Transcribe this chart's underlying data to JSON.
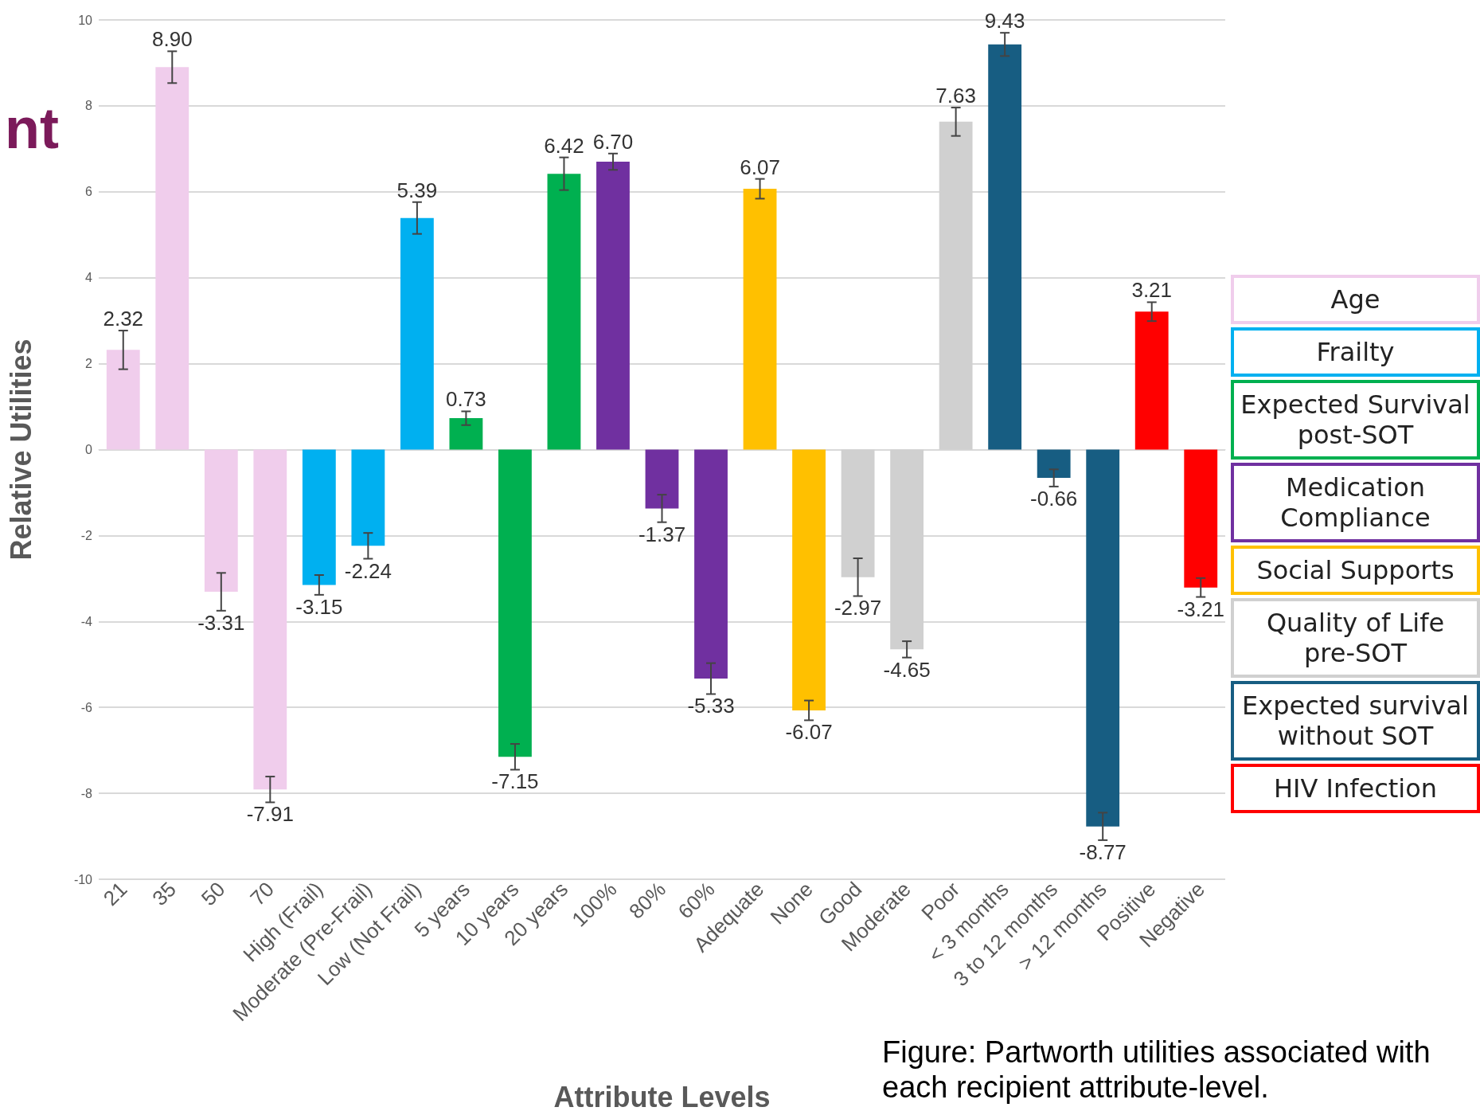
{
  "chart_data": {
    "type": "bar",
    "xlabel": "Attribute Levels",
    "ylabel": "Relative Utilities",
    "categories": [
      "21",
      "35",
      "50",
      "70",
      "High (Frail)",
      "Moderate (Pre-Frail)",
      "Low (Not Frail)",
      "5 years",
      "10 years",
      "20 years",
      "100%",
      "80%",
      "60%",
      "Adequate",
      "None",
      "Good",
      "Moderate",
      "Poor",
      "< 3 months",
      "3 to 12 months",
      "> 12 months",
      "Positive",
      "Negative"
    ],
    "series": [
      {
        "name": "Age",
        "color": "#f0cdec",
        "values": [
          2.32,
          8.9,
          -3.31,
          -7.91,
          null,
          null,
          null,
          null,
          null,
          null,
          null,
          null,
          null,
          null,
          null,
          null,
          null,
          null,
          null,
          null,
          null,
          null,
          null
        ],
        "errors": [
          0.45,
          0.37,
          0.44,
          0.3,
          null,
          null,
          null,
          null,
          null,
          null,
          null,
          null,
          null,
          null,
          null,
          null,
          null,
          null,
          null,
          null,
          null,
          null,
          null
        ],
        "value_labels": [
          "2.32",
          "8.90",
          "-3.31",
          "-7.91",
          null,
          null,
          null,
          null,
          null,
          null,
          null,
          null,
          null,
          null,
          null,
          null,
          null,
          null,
          null,
          null,
          null,
          null,
          null
        ]
      },
      {
        "name": "Frailty",
        "color": "#00b0f0",
        "values": [
          null,
          null,
          null,
          null,
          -3.15,
          -2.24,
          5.39,
          null,
          null,
          null,
          null,
          null,
          null,
          null,
          null,
          null,
          null,
          null,
          null,
          null,
          null,
          null,
          null
        ],
        "errors": [
          null,
          null,
          null,
          null,
          0.23,
          0.3,
          0.37,
          null,
          null,
          null,
          null,
          null,
          null,
          null,
          null,
          null,
          null,
          null,
          null,
          null,
          null,
          null,
          null
        ],
        "value_labels": [
          null,
          null,
          null,
          null,
          "-3.15",
          "-2.24",
          "5.39",
          null,
          null,
          null,
          null,
          null,
          null,
          null,
          null,
          null,
          null,
          null,
          null,
          null,
          null,
          null,
          null
        ]
      },
      {
        "name": "Expected Survival post-SOT",
        "color": "#00b050",
        "values": [
          null,
          null,
          null,
          null,
          null,
          null,
          null,
          0.73,
          -7.15,
          6.42,
          null,
          null,
          null,
          null,
          null,
          null,
          null,
          null,
          null,
          null,
          null,
          null,
          null
        ],
        "errors": [
          null,
          null,
          null,
          null,
          null,
          null,
          null,
          0.16,
          0.3,
          0.38,
          null,
          null,
          null,
          null,
          null,
          null,
          null,
          null,
          null,
          null,
          null,
          null,
          null
        ],
        "value_labels": [
          null,
          null,
          null,
          null,
          null,
          null,
          null,
          "0.73",
          "-7.15",
          "6.42",
          null,
          null,
          null,
          null,
          null,
          null,
          null,
          null,
          null,
          null,
          null,
          null,
          null
        ]
      },
      {
        "name": "Medication Compliance",
        "color": "#7030a0",
        "values": [
          null,
          null,
          null,
          null,
          null,
          null,
          null,
          null,
          null,
          null,
          6.7,
          -1.37,
          -5.33,
          null,
          null,
          null,
          null,
          null,
          null,
          null,
          null,
          null,
          null
        ],
        "errors": [
          null,
          null,
          null,
          null,
          null,
          null,
          null,
          null,
          null,
          null,
          0.19,
          0.32,
          0.36,
          null,
          null,
          null,
          null,
          null,
          null,
          null,
          null,
          null,
          null
        ],
        "value_labels": [
          null,
          null,
          null,
          null,
          null,
          null,
          null,
          null,
          null,
          null,
          "6.70",
          "-1.37",
          "-5.33",
          null,
          null,
          null,
          null,
          null,
          null,
          null,
          null,
          null,
          null
        ]
      },
      {
        "name": "Social Supports",
        "color": "#ffc000",
        "values": [
          null,
          null,
          null,
          null,
          null,
          null,
          null,
          null,
          null,
          null,
          null,
          null,
          null,
          6.07,
          -6.07,
          null,
          null,
          null,
          null,
          null,
          null,
          null,
          null
        ],
        "errors": [
          null,
          null,
          null,
          null,
          null,
          null,
          null,
          null,
          null,
          null,
          null,
          null,
          null,
          0.23,
          0.23,
          null,
          null,
          null,
          null,
          null,
          null,
          null,
          null
        ],
        "value_labels": [
          null,
          null,
          null,
          null,
          null,
          null,
          null,
          null,
          null,
          null,
          null,
          null,
          null,
          "6.07",
          "-6.07",
          null,
          null,
          null,
          null,
          null,
          null,
          null,
          null
        ]
      },
      {
        "name": "Quality of Life pre-SOT",
        "color": "#d0d0d0",
        "values": [
          null,
          null,
          null,
          null,
          null,
          null,
          null,
          null,
          null,
          null,
          null,
          null,
          null,
          null,
          null,
          -2.97,
          -4.65,
          7.63,
          null,
          null,
          null,
          null,
          null
        ],
        "errors": [
          null,
          null,
          null,
          null,
          null,
          null,
          null,
          null,
          null,
          null,
          null,
          null,
          null,
          null,
          null,
          0.44,
          0.19,
          0.33,
          null,
          null,
          null,
          null,
          null
        ],
        "value_labels": [
          null,
          null,
          null,
          null,
          null,
          null,
          null,
          null,
          null,
          null,
          null,
          null,
          null,
          null,
          null,
          "-2.97",
          "-4.65",
          "7.63",
          null,
          null,
          null,
          null,
          null
        ]
      },
      {
        "name": "Expected survival without SOT",
        "color": "#175d82",
        "values": [
          null,
          null,
          null,
          null,
          null,
          null,
          null,
          null,
          null,
          null,
          null,
          null,
          null,
          null,
          null,
          null,
          null,
          null,
          9.43,
          -0.66,
          -8.77,
          null,
          null
        ],
        "errors": [
          null,
          null,
          null,
          null,
          null,
          null,
          null,
          null,
          null,
          null,
          null,
          null,
          null,
          null,
          null,
          null,
          null,
          null,
          0.27,
          0.2,
          0.32,
          null,
          null
        ],
        "value_labels": [
          null,
          null,
          null,
          null,
          null,
          null,
          null,
          null,
          null,
          null,
          null,
          null,
          null,
          null,
          null,
          null,
          null,
          null,
          "9.43",
          "-0.66",
          "-8.77",
          null,
          null
        ]
      },
      {
        "name": "HIV Infection",
        "color": "#ff0000",
        "values": [
          null,
          null,
          null,
          null,
          null,
          null,
          null,
          null,
          null,
          null,
          null,
          null,
          null,
          null,
          null,
          null,
          null,
          null,
          null,
          null,
          null,
          3.21,
          -3.21
        ],
        "errors": [
          null,
          null,
          null,
          null,
          null,
          null,
          null,
          null,
          null,
          null,
          null,
          null,
          null,
          null,
          null,
          null,
          null,
          null,
          null,
          null,
          null,
          0.22,
          0.22
        ],
        "value_labels": [
          null,
          null,
          null,
          null,
          null,
          null,
          null,
          null,
          null,
          null,
          null,
          null,
          null,
          null,
          null,
          null,
          null,
          null,
          null,
          null,
          null,
          "3.21",
          "-3.21"
        ]
      }
    ],
    "ylim": [
      -10,
      10
    ],
    "yticks": [
      -10,
      -8,
      -6,
      -4,
      -2,
      0,
      2,
      4,
      6,
      8,
      10
    ],
    "grid": "y",
    "legend": "right",
    "annotations": [
      "nt",
      "Figure: Partworth utilities associated with each recipient attribute-level."
    ]
  }
}
